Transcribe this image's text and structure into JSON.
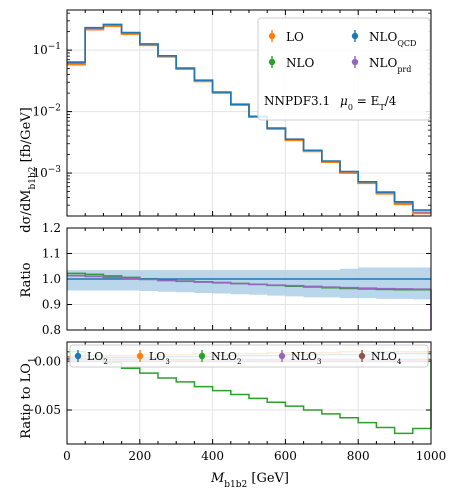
{
  "chart_data": [
    {
      "type": "line",
      "panel": "top",
      "ylabel": "dσ/dM_{b1b2} [fb/GeV]",
      "yscale": "log",
      "ylim": [
        0.0002,
        0.45
      ],
      "xlim": [
        0,
        1000
      ],
      "grid": true,
      "bin_edges": [
        0,
        50,
        100,
        150,
        200,
        250,
        300,
        350,
        400,
        450,
        500,
        550,
        600,
        650,
        700,
        750,
        800,
        850,
        900,
        950,
        1000
      ],
      "y_ticks": [
        {
          "v": 0.1,
          "b": "10",
          "e": "−1"
        },
        {
          "v": 0.01,
          "b": "10",
          "e": "−2"
        },
        {
          "v": 0.001,
          "b": "10",
          "e": "−3"
        }
      ],
      "series": [
        {
          "name": "LO",
          "color": "#ff7f0e",
          "values": [
            0.058,
            0.215,
            0.245,
            0.182,
            0.12,
            0.078,
            0.049,
            0.031,
            0.02,
            0.0127,
            0.0081,
            0.0052,
            0.0034,
            0.00225,
            0.0015,
            0.001,
            0.00068,
            0.00046,
            0.00031,
            0.00022
          ]
        },
        {
          "name": "NLO",
          "color": "#2ca02c",
          "values": [
            0.062,
            0.228,
            0.258,
            0.19,
            0.124,
            0.08,
            0.05,
            0.032,
            0.0205,
            0.013,
            0.0083,
            0.0053,
            0.0035,
            0.0023,
            0.00153,
            0.00102,
            0.00069,
            0.00047,
            0.00032,
            0.00023
          ]
        },
        {
          "name": "NLO_QCD",
          "color": "#1f77b4",
          "values": [
            0.064,
            0.232,
            0.262,
            0.193,
            0.126,
            0.081,
            0.051,
            0.0325,
            0.0208,
            0.0132,
            0.0084,
            0.0054,
            0.00355,
            0.00235,
            0.00157,
            0.00106,
            0.00072,
            0.00049,
            0.00034,
            0.00025
          ]
        },
        {
          "name": "NLO_prd",
          "color": "#9467bd",
          "values": [
            0.061,
            0.226,
            0.256,
            0.189,
            0.123,
            0.08,
            0.05,
            0.0318,
            0.0204,
            0.0129,
            0.0082,
            0.0053,
            0.0035,
            0.00229,
            0.00152,
            0.00101,
            0.00069,
            0.00047,
            0.00032,
            0.00023
          ]
        }
      ],
      "annotation": {
        "pdf": "NNPDF3.1",
        "scale": "μ0 = ET/4"
      }
    },
    {
      "type": "line",
      "panel": "ratio",
      "ylabel": "Ratio",
      "ylim": [
        0.8,
        1.2
      ],
      "y_ticks": [
        "0.8",
        "0.9",
        "1.0",
        "1.1",
        "1.2"
      ],
      "band": {
        "color": "#aecfe8",
        "lower": [
          0.955,
          0.955,
          0.955,
          0.955,
          0.953,
          0.95,
          0.948,
          0.945,
          0.943,
          0.94,
          0.938,
          0.935,
          0.932,
          0.928,
          0.928,
          0.925,
          0.925,
          0.922,
          0.922,
          0.92
        ],
        "upper": [
          1.035,
          1.035,
          1.035,
          1.035,
          1.035,
          1.035,
          1.035,
          1.035,
          1.035,
          1.035,
          1.035,
          1.035,
          1.035,
          1.035,
          1.035,
          1.04,
          1.045,
          1.045,
          1.045,
          1.045
        ]
      },
      "series": [
        {
          "name": "NLO/NLO_QCD",
          "color": "#2ca02c",
          "values": [
            1.022,
            1.018,
            1.012,
            1.006,
            1.001,
            0.996,
            0.992,
            0.989,
            0.986,
            0.982,
            0.979,
            0.975,
            0.972,
            0.969,
            0.966,
            0.963,
            0.961,
            0.959,
            0.958,
            0.958
          ]
        },
        {
          "name": "NLO_QCD",
          "color": "#1f77b4",
          "values": [
            1.0,
            1.0,
            1.0,
            1.0,
            1.0,
            1.0,
            1.0,
            1.0,
            1.0,
            1.0,
            1.0,
            1.0,
            1.0,
            1.0,
            1.0,
            1.0,
            1.0,
            1.0,
            1.0,
            1.0
          ]
        },
        {
          "name": "NLO_prd/NLO_QCD",
          "color": "#9467bd",
          "values": [
            1.013,
            1.01,
            1.006,
            1.002,
            0.998,
            0.994,
            0.991,
            0.988,
            0.985,
            0.982,
            0.979,
            0.976,
            0.974,
            0.971,
            0.968,
            0.966,
            0.964,
            0.962,
            0.961,
            0.96
          ]
        }
      ]
    },
    {
      "type": "line",
      "panel": "bottom",
      "ylabel": "Ratio to LO1",
      "xlabel": "M_{b1b2} [GeV]",
      "xlim": [
        0,
        1000
      ],
      "ylim": [
        -0.085,
        0.02
      ],
      "x_ticks": [
        "0",
        "200",
        "400",
        "600",
        "800",
        "1000"
      ],
      "y_ticks": [
        {
          "v": 0.0,
          "t": "0.00"
        },
        {
          "v": -0.05,
          "t": "−0.05"
        }
      ],
      "series": [
        {
          "name": "LO2",
          "color": "#1f77b4",
          "values": [
            0.003,
            0.003,
            0.004,
            0.004,
            0.004,
            0.005,
            0.005,
            0.005,
            0.006,
            0.006,
            0.006,
            0.006,
            0.007,
            0.007,
            0.007,
            0.007,
            0.007,
            0.008,
            0.008,
            0.008
          ]
        },
        {
          "name": "LO3",
          "color": "#ff7f0e",
          "values": [
            0.005,
            0.006,
            0.006,
            0.006,
            0.007,
            0.007,
            0.007,
            0.008,
            0.008,
            0.008,
            0.008,
            0.009,
            0.009,
            0.009,
            0.009,
            0.01,
            0.01,
            0.01,
            0.01,
            0.01
          ]
        },
        {
          "name": "NLO2",
          "color": "#2ca02c",
          "values": [
            0.01,
            0.006,
            -0.001,
            -0.007,
            -0.012,
            -0.017,
            -0.021,
            -0.026,
            -0.03,
            -0.034,
            -0.038,
            -0.042,
            -0.046,
            -0.05,
            -0.054,
            -0.058,
            -0.063,
            -0.068,
            -0.074,
            -0.069
          ]
        },
        {
          "name": "NLO3",
          "color": "#9467bd",
          "values": [
            0.002,
            0.002,
            0.002,
            0.002,
            0.002,
            0.002,
            0.002,
            0.002,
            0.002,
            0.002,
            0.002,
            0.002,
            0.002,
            0.002,
            0.002,
            0.002,
            0.002,
            0.002,
            0.002,
            0.002
          ]
        },
        {
          "name": "NLO4",
          "color": "#8c564b",
          "values": [
            0.0,
            0.0,
            0.0,
            0.0,
            0.0,
            0.0,
            0.0,
            0.0,
            0.0,
            0.0,
            0.0,
            0.0,
            0.0,
            0.0,
            0.0,
            0.0,
            0.0,
            0.0,
            0.0,
            0.0
          ]
        }
      ]
    }
  ],
  "legend_top": [
    {
      "base": "LO",
      "sub": "",
      "color": "#ff7f0e"
    },
    {
      "base": "NLO",
      "sub": "QCD",
      "color": "#1f77b4"
    },
    {
      "base": "NLO",
      "sub": "",
      "color": "#2ca02c"
    },
    {
      "base": "NLO",
      "sub": "prd",
      "color": "#9467bd"
    }
  ],
  "legend_bottom": [
    {
      "base": "LO",
      "sub": "2",
      "color": "#1f77b4"
    },
    {
      "base": "LO",
      "sub": "3",
      "color": "#ff7f0e"
    },
    {
      "base": "NLO",
      "sub": "2",
      "color": "#2ca02c"
    },
    {
      "base": "NLO",
      "sub": "3",
      "color": "#9467bd"
    },
    {
      "base": "NLO",
      "sub": "4",
      "color": "#8c564b"
    }
  ],
  "labels": {
    "ylabel_top": "dσ/dM",
    "ylabel_top_sub": "b1b2",
    "ylabel_top_unit": " [fb/GeV]",
    "ylabel_ratio": "Ratio",
    "ylabel_bottom": "Ratio to LO",
    "ylabel_bottom_sub": "1",
    "xlabel": "M",
    "xlabel_sub": "b1b2",
    "xlabel_unit": " [GeV]",
    "pdf": "NNPDF3.1",
    "scale_mu": "μ",
    "scale_sub": "0",
    "scale_eq": " = E",
    "scale_sub2": "T",
    "scale_tail": "/4"
  }
}
